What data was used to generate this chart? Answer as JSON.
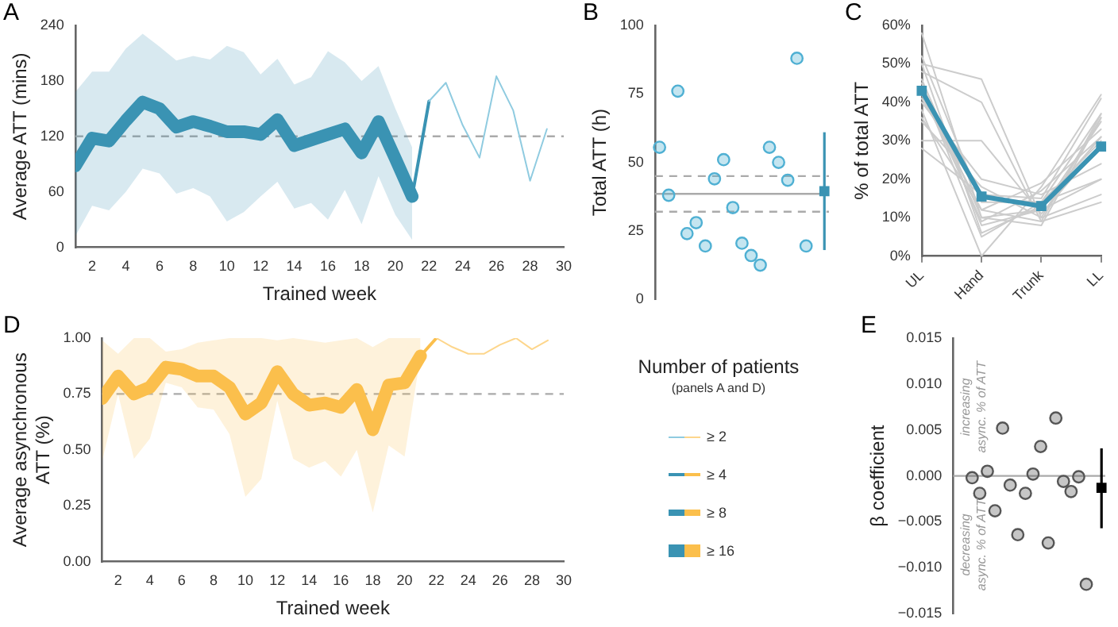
{
  "chart_data": [
    {
      "type": "line",
      "annotations": [
        "A"
      ],
      "xlabel": "Trained week",
      "ylabel": "Average ATT (mins)",
      "xlim": [
        1,
        30
      ],
      "xticks": [
        2,
        4,
        6,
        8,
        10,
        12,
        14,
        16,
        18,
        20,
        22,
        24,
        26,
        28,
        30
      ],
      "ylim": [
        0,
        240
      ],
      "yticks": [
        0,
        60,
        120,
        180,
        240
      ],
      "series": [
        {
          "color": "#3a93b3",
          "x": [
            1,
            2,
            3,
            4,
            5,
            6,
            7,
            8,
            9,
            10,
            11,
            12,
            13,
            14,
            15,
            16,
            17,
            18,
            19,
            20,
            21
          ],
          "values": [
            88,
            118,
            115,
            137,
            157,
            150,
            130,
            136,
            131,
            125,
            125,
            122,
            138,
            110,
            116,
            122,
            128,
            102,
            136,
            96,
            55
          ],
          "lower": [
            12,
            45,
            40,
            60,
            85,
            80,
            58,
            64,
            55,
            28,
            38,
            55,
            71,
            42,
            48,
            30,
            62,
            25,
            77,
            35,
            8
          ],
          "upper": [
            168,
            190,
            190,
            215,
            231,
            217,
            202,
            207,
            203,
            218,
            211,
            187,
            204,
            176,
            184,
            212,
            200,
            180,
            196,
            150,
            108
          ]
        },
        {
          "color": "#3a93b3",
          "x": [
            21,
            22
          ],
          "values": [
            55,
            158
          ]
        },
        {
          "color": "#8fcbe0",
          "x": [
            22,
            23,
            24,
            25,
            26,
            27,
            28,
            29
          ],
          "values": [
            158,
            178,
            132,
            97,
            185,
            148,
            72,
            128
          ]
        }
      ],
      "ref_lines": [
        {
          "axis": "y",
          "value": 120,
          "color": "#aaaaaa",
          "line_style": "dashed"
        }
      ]
    },
    {
      "type": "scatter",
      "annotations": [
        "B"
      ],
      "ylabel": "Total ATT (h)",
      "categories": [
        null,
        null,
        null,
        null,
        null,
        null,
        null,
        null,
        null,
        null,
        null,
        null,
        null,
        null,
        null,
        null,
        null,
        null,
        null
      ],
      "ylim": [
        0,
        100
      ],
      "yticks": [
        0,
        25,
        50,
        75,
        100
      ],
      "marker": "circle",
      "series": [
        {
          "color": "#4fb0d3",
          "values": [
            55.5,
            38,
            76,
            24,
            28,
            19.5,
            44,
            51,
            33.5,
            20.5,
            16,
            12.5,
            55.5,
            50,
            43.5,
            88,
            19.5,
            null,
            null
          ]
        },
        {
          "color": "#3a93b3",
          "marker": "square",
          "values": [
            null,
            null,
            null,
            null,
            null,
            null,
            null,
            null,
            null,
            null,
            null,
            null,
            null,
            null,
            null,
            null,
            null,
            null,
            39.5
          ],
          "errors": [
            null,
            null,
            null,
            null,
            null,
            null,
            null,
            null,
            null,
            null,
            null,
            null,
            null,
            null,
            null,
            null,
            null,
            null,
            [
              18,
              61
            ]
          ]
        }
      ],
      "ref_lines": [
        {
          "axis": "y",
          "value": 38.5,
          "color": "#aaaaaa",
          "line_style": "solid"
        },
        {
          "axis": "y",
          "value": 45,
          "color": "#aaaaaa",
          "line_style": "dashed"
        },
        {
          "axis": "y",
          "value": 32,
          "color": "#aaaaaa",
          "line_style": "dashed"
        }
      ]
    },
    {
      "type": "line",
      "annotations": [
        "C"
      ],
      "ylabel": "% of total ATT",
      "categories": [
        "UL",
        "Hand",
        "Trunk",
        "LL"
      ],
      "ylim": [
        0,
        60
      ],
      "yticks": [
        {
          "value": 0,
          "label": "0%"
        },
        {
          "value": 10,
          "label": "10%"
        },
        {
          "value": 20,
          "label": "20%"
        },
        {
          "value": 30,
          "label": "30%"
        },
        {
          "value": 40,
          "label": "40%"
        },
        {
          "value": 50,
          "label": "50%"
        },
        {
          "value": 60,
          "label": "60%"
        }
      ],
      "series": [
        {
          "color": "#cccccc",
          "values": [
            58,
            10,
            12,
            20
          ]
        },
        {
          "color": "#cccccc",
          "values": [
            52,
            14,
            14,
            20
          ]
        },
        {
          "color": "#cccccc",
          "values": [
            50,
            46,
            10,
            16
          ]
        },
        {
          "color": "#cccccc",
          "values": [
            48,
            40,
            9,
            14
          ]
        },
        {
          "color": "#cccccc",
          "values": [
            45,
            8,
            12,
            35
          ]
        },
        {
          "color": "#cccccc",
          "values": [
            44,
            5,
            14,
            37
          ]
        },
        {
          "color": "#cccccc",
          "values": [
            42,
            12,
            9,
            37
          ]
        },
        {
          "color": "#cccccc",
          "values": [
            40,
            20,
            16,
            24
          ]
        },
        {
          "color": "#cccccc",
          "values": [
            38,
            0,
            18,
            42
          ]
        },
        {
          "color": "#cccccc",
          "values": [
            36,
            12,
            19,
            33
          ]
        },
        {
          "color": "#cccccc",
          "values": [
            35,
            18,
            10,
            36
          ]
        },
        {
          "color": "#cccccc",
          "values": [
            30,
            30,
            11,
            29
          ]
        },
        {
          "color": "#cccccc",
          "values": [
            28,
            16,
            15,
            41
          ]
        },
        {
          "color": "#cccccc",
          "values": [
            50,
            6,
            13,
            31
          ]
        },
        {
          "color": "#cccccc",
          "values": [
            46,
            10,
            8,
            36
          ]
        },
        {
          "color": "#cccccc",
          "values": [
            43,
            9,
            17,
            31
          ]
        },
        {
          "color": "#cccccc",
          "values": [
            41,
            15,
            14,
            30
          ]
        },
        {
          "color": "#3a93b3",
          "marker": "square",
          "values": [
            43,
            15.5,
            13,
            28.5
          ]
        }
      ]
    },
    {
      "type": "line",
      "annotations": [
        "D"
      ],
      "xlabel": "Trained week",
      "ylabel": "Average asynchronous\nATT (%)",
      "xlim": [
        1,
        30
      ],
      "xticks": [
        2,
        4,
        6,
        8,
        10,
        12,
        14,
        16,
        18,
        20,
        22,
        24,
        26,
        28,
        30
      ],
      "ylim": [
        0,
        1
      ],
      "yticks": [
        {
          "value": 0,
          "label": "0.00"
        },
        {
          "value": 0.25,
          "label": "0.25"
        },
        {
          "value": 0.5,
          "label": "0.50"
        },
        {
          "value": 0.75,
          "label": "0.75"
        },
        {
          "value": 1,
          "label": "1.00"
        }
      ],
      "series": [
        {
          "color": "#fbbf4c",
          "x": [
            1,
            2,
            3,
            4,
            5,
            6,
            7,
            8,
            9,
            10,
            11,
            12,
            13,
            14,
            15,
            16,
            17,
            18,
            19,
            20,
            21
          ],
          "values": [
            0.73,
            0.83,
            0.75,
            0.78,
            0.87,
            0.86,
            0.83,
            0.83,
            0.78,
            0.66,
            0.71,
            0.85,
            0.75,
            0.7,
            0.71,
            0.69,
            0.77,
            0.59,
            0.79,
            0.8,
            0.92
          ],
          "lower": [
            0.45,
            0.75,
            0.46,
            0.55,
            0.8,
            0.78,
            0.69,
            0.68,
            0.57,
            0.29,
            0.37,
            0.72,
            0.46,
            0.42,
            0.45,
            0.38,
            0.5,
            0.22,
            0.52,
            0.47,
            0.92
          ],
          "upper": [
            0.99,
            0.93,
            1,
            1,
            0.94,
            0.95,
            0.98,
            0.99,
            1,
            1,
            1,
            0.99,
            1,
            0.99,
            0.98,
            0.99,
            1,
            0.96,
            1,
            1,
            1
          ]
        },
        {
          "color": "#fbbf4c",
          "x": [
            21,
            22
          ],
          "values": [
            0.92,
            1.0
          ]
        },
        {
          "color": "#fdd68c",
          "x": [
            22,
            23,
            24,
            25,
            26,
            27,
            28,
            29
          ],
          "values": [
            1.0,
            0.96,
            0.93,
            0.93,
            0.97,
            1.0,
            0.95,
            0.99
          ]
        }
      ],
      "ref_lines": [
        {
          "axis": "y",
          "value": 0.75,
          "color": "#aaaaaa",
          "line_style": "dashed"
        }
      ]
    },
    {
      "type": "other",
      "title": "Number of patients",
      "subtitle": "(panels A and D)",
      "annotations": [
        "≥ 2",
        "≥ 4",
        "≥ 8",
        "≥ 16"
      ]
    },
    {
      "type": "scatter",
      "annotations": [
        "E",
        "increasing\nasync. % of ATT",
        "decreasing\nasync. % of ATT"
      ],
      "ylabel": "β coefficient",
      "categories": [
        null,
        null,
        null,
        null,
        null,
        null,
        null,
        null,
        null,
        null,
        null,
        null,
        null,
        null,
        null,
        null,
        null,
        null,
        null,
        null
      ],
      "ylim": [
        -0.015,
        0.015
      ],
      "yticks": [
        {
          "value": -0.015,
          "label": "−0.015"
        },
        {
          "value": -0.01,
          "label": "−0.010"
        },
        {
          "value": -0.005,
          "label": "−0.005"
        },
        {
          "value": 0,
          "label": "0.000"
        },
        {
          "value": 0.005,
          "label": "0.005"
        },
        {
          "value": 0.01,
          "label": "0.010"
        },
        {
          "value": 0.015,
          "label": "0.015"
        }
      ],
      "marker": "circle",
      "series": [
        {
          "color": "#555555",
          "values": [
            null,
            null,
            -0.0002,
            -0.0019,
            0.0005,
            -0.0038,
            0.0052,
            -0.001,
            -0.0064,
            -0.0019,
            0.0002,
            0.0032,
            -0.0073,
            0.0063,
            -0.0006,
            -0.0017,
            -0.0001,
            -0.0118,
            null,
            null
          ]
        },
        {
          "color": "#000000",
          "marker": "square",
          "values": [
            null,
            null,
            null,
            null,
            null,
            null,
            null,
            null,
            null,
            null,
            null,
            null,
            null,
            null,
            null,
            null,
            null,
            null,
            null,
            -0.0013
          ],
          "errors": [
            null,
            null,
            null,
            null,
            null,
            null,
            null,
            null,
            null,
            null,
            null,
            null,
            null,
            null,
            null,
            null,
            null,
            null,
            null,
            [
              -0.0057,
              0.003
            ]
          ]
        }
      ],
      "ref_lines": [
        {
          "axis": "y",
          "value": 0,
          "color": "#aaaaaa",
          "line_style": "solid"
        }
      ]
    }
  ]
}
